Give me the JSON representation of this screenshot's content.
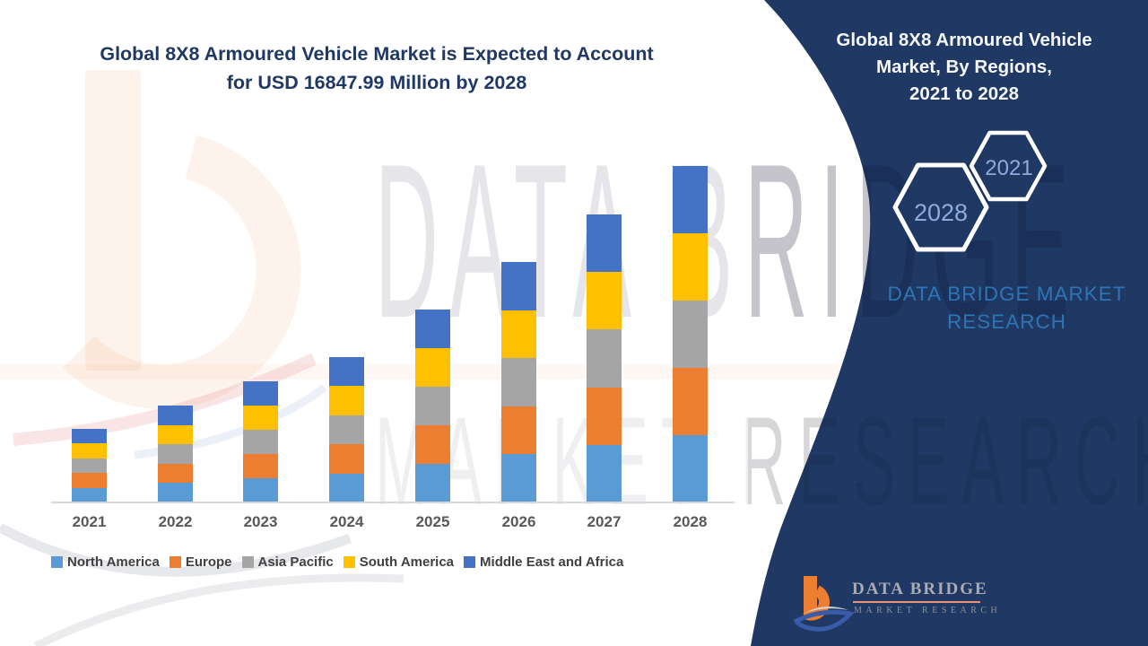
{
  "title": {
    "line1": "Global 8X8 Armoured Vehicle Market is Expected to Account",
    "line2": "for USD 16847.99 Million by 2028"
  },
  "panel": {
    "title_line1": "Global 8X8 Armoured Vehicle",
    "title_line2": "Market, By Regions,",
    "title_line3": "2021 to 2028",
    "hex_large_label": "2028",
    "hex_small_label": "2021",
    "brand_line1": "DATA BRIDGE MARKET",
    "brand_line2": "RESEARCH",
    "background_color": "#1F3864",
    "hex_label_color": "#8FAADC",
    "brand_color": "#2E75B6"
  },
  "watermark": {
    "row1": "DATA BRIDGE",
    "row2": "MARKET RESEARCH"
  },
  "logo": {
    "name": "DATA BRIDGE",
    "tagline": "MARKET RESEARCH"
  },
  "chart_data": {
    "type": "bar",
    "stacked": true,
    "title": "Global 8X8 Armoured Vehicle Market is Expected to Account for USD 16847.99 Million by 2028",
    "unit": "USD Million",
    "categories": [
      "2021",
      "2022",
      "2023",
      "2024",
      "2025",
      "2026",
      "2027",
      "2028"
    ],
    "series": [
      {
        "name": "North America",
        "color": "#5B9BD5",
        "values": [
          737,
          971,
          1214,
          1456,
          1932,
          2408,
          2885,
          3369.6
        ]
      },
      {
        "name": "Europe",
        "color": "#ED7D31",
        "values": [
          737,
          971,
          1214,
          1456,
          1932,
          2408,
          2885,
          3369.6
        ]
      },
      {
        "name": "Asia Pacific",
        "color": "#A5A5A5",
        "values": [
          737,
          971,
          1214,
          1456,
          1932,
          2408,
          2885,
          3369.6
        ]
      },
      {
        "name": "South America",
        "color": "#FFC000",
        "values": [
          737,
          971,
          1214,
          1456,
          1932,
          2408,
          2885,
          3369.6
        ]
      },
      {
        "name": "Middle East and Africa",
        "color": "#4472C4",
        "values": [
          737,
          971,
          1214,
          1456,
          1932,
          2408,
          2885,
          3369.6
        ]
      }
    ],
    "totals": [
      3685,
      4855,
      6070,
      7280,
      9660,
      12040,
      14425,
      16847.99
    ],
    "ylim": [
      0,
      16848
    ],
    "gridlines": false,
    "legend_position": "bottom",
    "xlabel": "",
    "ylabel": ""
  },
  "colors": {
    "title_color": "#1F3864",
    "axis_line": "#D9D9D9",
    "x_label_color": "#595959",
    "legend_text_color": "#404040"
  }
}
